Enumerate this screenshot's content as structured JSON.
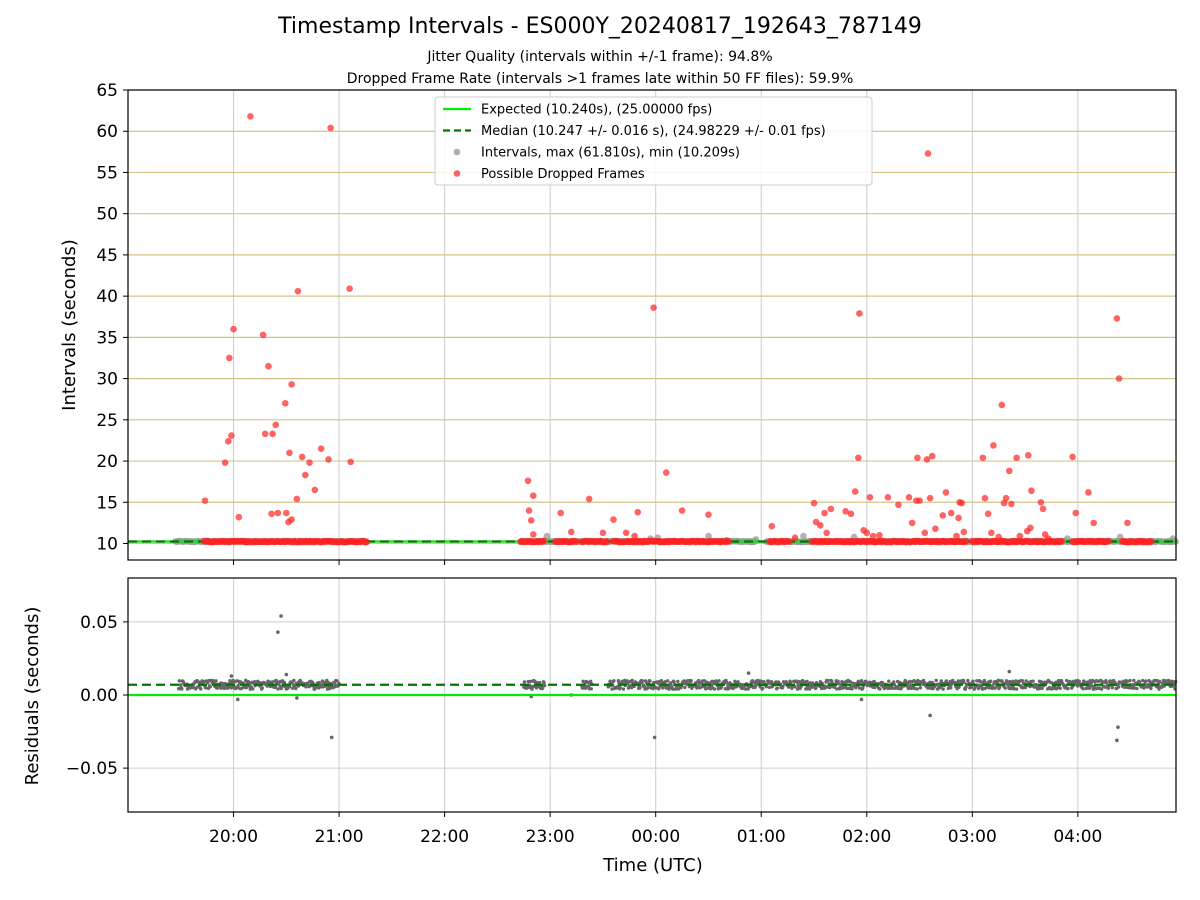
{
  "header": {
    "title": "Timestamp Intervals - ES000Y_20240817_192643_787149",
    "subtitle1": "Jitter Quality (intervals within +/-1 frame): 94.8%",
    "subtitle2": "Dropped Frame Rate (intervals >1 frames late within 50 FF files): 59.9%"
  },
  "colors": {
    "expected": "#00ee00",
    "median": "#007700",
    "dropped": "#ff2222",
    "intervals": "#999999",
    "residuals": "#666666",
    "hgrid_top": "#d4c48a",
    "grid": "#cccccc"
  },
  "chart_data": [
    {
      "type": "scatter",
      "panel": "intervals",
      "ylabel": "Intervals (seconds)",
      "xlabel": "",
      "ylim": [
        8,
        65
      ],
      "yticks": [
        10,
        15,
        20,
        25,
        30,
        35,
        40,
        45,
        50,
        55,
        60,
        65
      ],
      "xlim_hours": [
        19.0,
        28.93
      ],
      "xticks": [
        {
          "h": 20,
          "label": "20:00"
        },
        {
          "h": 21,
          "label": "21:00"
        },
        {
          "h": 22,
          "label": "22:00"
        },
        {
          "h": 23,
          "label": "23:00"
        },
        {
          "h": 24,
          "label": "00:00"
        },
        {
          "h": 25,
          "label": "01:00"
        },
        {
          "h": 26,
          "label": "02:00"
        },
        {
          "h": 27,
          "label": "03:00"
        },
        {
          "h": 28,
          "label": "04:00"
        }
      ],
      "grid": "vertical gray, horizontal gold",
      "legend_position": "top-center",
      "legend": [
        {
          "label": "Expected (10.240s), (25.00000 fps)",
          "style": "solid-line"
        },
        {
          "label": "Median (10.247 +/- 0.016 s), (24.98229 +/- 0.01 fps)",
          "style": "dashed-line"
        },
        {
          "label": "Intervals, max (61.810s), min (10.209s)",
          "style": "gray-dot"
        },
        {
          "label": "Possible Dropped Frames",
          "style": "red-dot"
        }
      ],
      "expected_value": 10.24,
      "median_value": 10.247,
      "interval_baseline": 10.24,
      "interval_segments": [
        [
          19.45,
          21.27
        ],
        [
          22.72,
          24.45
        ],
        [
          24.45,
          24.95
        ],
        [
          25.05,
          28.93
        ]
      ],
      "dropped_segments": [
        [
          19.72,
          21.27
        ],
        [
          22.72,
          22.95
        ],
        [
          23.05,
          23.25
        ],
        [
          23.3,
          23.55
        ],
        [
          23.6,
          24.45
        ],
        [
          24.45,
          24.7
        ],
        [
          25.08,
          25.27
        ],
        [
          25.48,
          26.15
        ],
        [
          26.15,
          26.95
        ],
        [
          27.0,
          27.85
        ],
        [
          27.95,
          28.3
        ],
        [
          28.42,
          28.7
        ]
      ],
      "series": [
        {
          "name": "Possible Dropped Frames",
          "points": [
            [
              19.73,
              15.2
            ],
            [
              19.92,
              19.8
            ],
            [
              19.95,
              22.4
            ],
            [
              19.96,
              32.5
            ],
            [
              19.98,
              23.1
            ],
            [
              20.0,
              36.0
            ],
            [
              20.05,
              13.2
            ],
            [
              20.16,
              61.8
            ],
            [
              20.28,
              35.3
            ],
            [
              20.3,
              23.3
            ],
            [
              20.33,
              31.5
            ],
            [
              20.36,
              13.6
            ],
            [
              20.37,
              23.3
            ],
            [
              20.4,
              24.4
            ],
            [
              20.42,
              13.7
            ],
            [
              20.49,
              27.0
            ],
            [
              20.5,
              13.7
            ],
            [
              20.52,
              12.6
            ],
            [
              20.53,
              21.0
            ],
            [
              20.55,
              12.9
            ],
            [
              20.55,
              29.3
            ],
            [
              20.6,
              15.4
            ],
            [
              20.61,
              40.6
            ],
            [
              20.65,
              20.5
            ],
            [
              20.68,
              18.3
            ],
            [
              20.72,
              19.8
            ],
            [
              20.77,
              16.5
            ],
            [
              20.83,
              21.5
            ],
            [
              20.9,
              20.2
            ],
            [
              20.92,
              60.4
            ],
            [
              21.1,
              40.9
            ],
            [
              21.11,
              19.9
            ],
            [
              22.79,
              17.6
            ],
            [
              22.8,
              14.0
            ],
            [
              22.82,
              12.8
            ],
            [
              22.84,
              15.8
            ],
            [
              22.84,
              11.1
            ],
            [
              23.1,
              13.7
            ],
            [
              23.2,
              11.4
            ],
            [
              23.37,
              15.4
            ],
            [
              23.5,
              11.3
            ],
            [
              23.6,
              12.9
            ],
            [
              23.72,
              11.3
            ],
            [
              23.8,
              10.9
            ],
            [
              23.83,
              13.8
            ],
            [
              23.98,
              38.6
            ],
            [
              24.1,
              18.6
            ],
            [
              24.25,
              14.0
            ],
            [
              24.5,
              13.5
            ],
            [
              25.1,
              12.1
            ],
            [
              25.32,
              10.7
            ],
            [
              25.5,
              14.9
            ],
            [
              25.52,
              12.6
            ],
            [
              25.56,
              12.2
            ],
            [
              25.6,
              13.7
            ],
            [
              25.62,
              11.3
            ],
            [
              25.66,
              14.2
            ],
            [
              25.8,
              13.9
            ],
            [
              25.85,
              13.6
            ],
            [
              25.89,
              16.3
            ],
            [
              25.92,
              20.4
            ],
            [
              25.93,
              37.9
            ],
            [
              25.97,
              11.6
            ],
            [
              26.0,
              11.3
            ],
            [
              26.03,
              15.6
            ],
            [
              26.06,
              10.9
            ],
            [
              26.12,
              11.0
            ],
            [
              26.2,
              15.6
            ],
            [
              26.3,
              14.7
            ],
            [
              26.4,
              15.6
            ],
            [
              26.43,
              12.5
            ],
            [
              26.47,
              15.2
            ],
            [
              26.48,
              20.4
            ],
            [
              26.5,
              15.2
            ],
            [
              26.55,
              11.3
            ],
            [
              26.57,
              20.2
            ],
            [
              26.58,
              57.3
            ],
            [
              26.6,
              15.5
            ],
            [
              26.62,
              20.6
            ],
            [
              26.65,
              11.8
            ],
            [
              26.72,
              13.4
            ],
            [
              26.75,
              16.2
            ],
            [
              26.8,
              13.7
            ],
            [
              26.85,
              10.9
            ],
            [
              26.87,
              13.1
            ],
            [
              26.88,
              15.0
            ],
            [
              26.9,
              14.9
            ],
            [
              26.92,
              11.4
            ],
            [
              27.1,
              20.4
            ],
            [
              27.12,
              15.5
            ],
            [
              27.15,
              13.6
            ],
            [
              27.18,
              11.3
            ],
            [
              27.2,
              21.9
            ],
            [
              27.25,
              10.8
            ],
            [
              27.28,
              26.8
            ],
            [
              27.3,
              14.9
            ],
            [
              27.32,
              15.5
            ],
            [
              27.35,
              18.8
            ],
            [
              27.37,
              14.8
            ],
            [
              27.42,
              20.4
            ],
            [
              27.45,
              10.9
            ],
            [
              27.52,
              11.5
            ],
            [
              27.53,
              20.7
            ],
            [
              27.55,
              11.9
            ],
            [
              27.56,
              16.4
            ],
            [
              27.65,
              15.0
            ],
            [
              27.67,
              14.2
            ],
            [
              27.69,
              11.1
            ],
            [
              27.72,
              10.6
            ],
            [
              27.95,
              20.5
            ],
            [
              27.98,
              13.7
            ],
            [
              28.1,
              16.2
            ],
            [
              28.15,
              12.5
            ],
            [
              28.37,
              37.3
            ],
            [
              28.39,
              30.0
            ],
            [
              28.47,
              12.5
            ]
          ]
        },
        {
          "name": "Intervals, max (61.810s), min (10.209s)",
          "points": [
            [
              19.48,
              10.3
            ],
            [
              22.97,
              10.9
            ],
            [
              24.02,
              10.7
            ],
            [
              24.5,
              10.9
            ],
            [
              24.67,
              10.4
            ],
            [
              24.95,
              10.5
            ],
            [
              25.4,
              10.9
            ],
            [
              25.88,
              10.8
            ],
            [
              27.9,
              10.6
            ],
            [
              28.4,
              10.8
            ],
            [
              28.9,
              10.6
            ],
            [
              23.95,
              10.6
            ]
          ]
        }
      ]
    },
    {
      "type": "scatter",
      "panel": "residuals",
      "ylabel": "Residuals (seconds)",
      "xlabel": "Time (UTC)",
      "ylim": [
        -0.08,
        0.08
      ],
      "yticks": [
        {
          "v": 0.05,
          "label": "0.05"
        },
        {
          "v": 0.0,
          "label": "0.00"
        },
        {
          "v": -0.05,
          "label": "−0.05"
        }
      ],
      "expected_value": 0.0,
      "median_value": 0.007,
      "residual_baseline": 0.007,
      "residual_spread": 0.003,
      "residual_segments": [
        [
          19.48,
          21.0
        ],
        [
          22.75,
          22.95
        ],
        [
          23.3,
          23.4
        ],
        [
          23.55,
          28.93
        ]
      ],
      "series": [
        {
          "name": "Residuals",
          "points": [
            [
              20.04,
              -0.003
            ],
            [
              20.42,
              0.043
            ],
            [
              20.45,
              0.054
            ],
            [
              20.6,
              -0.002
            ],
            [
              20.93,
              -0.029
            ],
            [
              23.99,
              -0.029
            ],
            [
              25.95,
              -0.003
            ],
            [
              26.6,
              -0.014
            ],
            [
              28.38,
              -0.022
            ],
            [
              28.37,
              -0.031
            ],
            [
              19.98,
              0.013
            ],
            [
              20.5,
              0.014
            ],
            [
              24.88,
              0.015
            ],
            [
              27.35,
              0.016
            ],
            [
              22.82,
              -0.001
            ],
            [
              23.2,
              0.0
            ]
          ]
        }
      ]
    }
  ]
}
